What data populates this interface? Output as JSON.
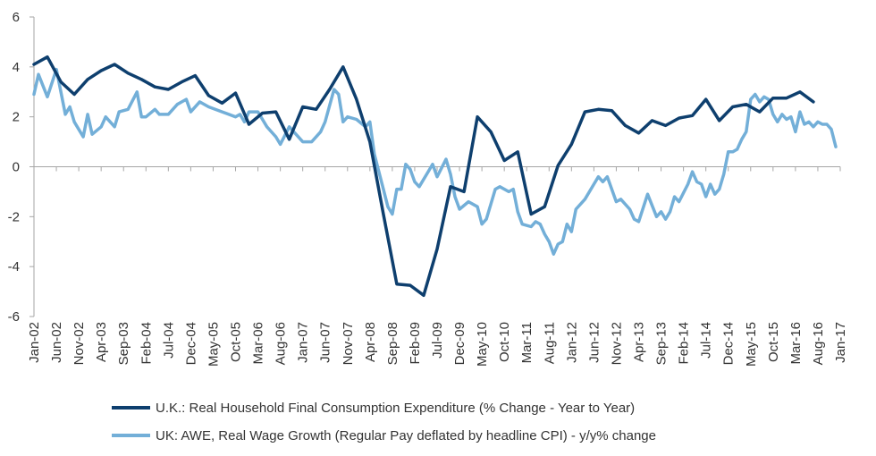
{
  "chart_data": {
    "type": "line",
    "title": "",
    "xlabel": "",
    "ylabel": "",
    "ylim": [
      -6,
      6
    ],
    "yticks": [
      -6,
      -4,
      -2,
      0,
      2,
      4,
      6
    ],
    "ytick_labels": [
      "-6",
      "-4",
      "-2",
      "0",
      "2",
      "4",
      "6"
    ],
    "xlim": [
      "Jan-02",
      "Jan-17"
    ],
    "xtick_labels": [
      "Jan-02",
      "Jun-02",
      "Nov-02",
      "Apr-03",
      "Sep-03",
      "Feb-04",
      "Jul-04",
      "Dec-04",
      "May-05",
      "Oct-05",
      "Mar-06",
      "Aug-06",
      "Jan-07",
      "Jun-07",
      "Nov-07",
      "Apr-08",
      "Sep-08",
      "Feb-09",
      "Jul-09",
      "Dec-09",
      "May-10",
      "Oct-10",
      "Mar-11",
      "Aug-11",
      "Jan-12",
      "Jun-12",
      "Nov-12",
      "Apr-13",
      "Sep-13",
      "Feb-14",
      "Jul-14",
      "Dec-14",
      "May-15",
      "Oct-15",
      "Mar-16",
      "Aug-16",
      "Jan-17"
    ],
    "grid": false,
    "legend_position": "bottom",
    "series": [
      {
        "name": "U.K.: Real Household Final Consumption Expenditure (% Change - Year to Year)",
        "color": "#0e3f6e",
        "points": [
          [
            "Jan-02",
            4.1
          ],
          [
            "Apr-02",
            4.4
          ],
          [
            "Jul-02",
            3.4
          ],
          [
            "Oct-02",
            2.9
          ],
          [
            "Jan-03",
            3.5
          ],
          [
            "Apr-03",
            3.85
          ],
          [
            "Jul-03",
            4.1
          ],
          [
            "Oct-03",
            3.75
          ],
          [
            "Jan-04",
            3.5
          ],
          [
            "Apr-04",
            3.2
          ],
          [
            "Jul-04",
            3.1
          ],
          [
            "Oct-04",
            3.4
          ],
          [
            "Jan-05",
            3.65
          ],
          [
            "Apr-05",
            2.85
          ],
          [
            "Jul-05",
            2.55
          ],
          [
            "Oct-05",
            2.95
          ],
          [
            "Jan-06",
            1.7
          ],
          [
            "Apr-06",
            2.15
          ],
          [
            "Jul-06",
            2.2
          ],
          [
            "Oct-06",
            1.1
          ],
          [
            "Jan-07",
            2.4
          ],
          [
            "Apr-07",
            2.3
          ],
          [
            "Jul-07",
            3.1
          ],
          [
            "Oct-07",
            4.0
          ],
          [
            "Jan-08",
            2.7
          ],
          [
            "Apr-08",
            1.0
          ],
          [
            "Jul-08",
            -1.9
          ],
          [
            "Oct-08",
            -4.7
          ],
          [
            "Jan-09",
            -4.75
          ],
          [
            "Apr-09",
            -5.15
          ],
          [
            "Jul-09",
            -3.3
          ],
          [
            "Oct-09",
            -0.8
          ],
          [
            "Jan-10",
            -1.0
          ],
          [
            "Apr-10",
            2.0
          ],
          [
            "Jul-10",
            1.4
          ],
          [
            "Oct-10",
            0.25
          ],
          [
            "Jan-11",
            0.6
          ],
          [
            "Apr-11",
            -1.9
          ],
          [
            "Jul-11",
            -1.6
          ],
          [
            "Oct-11",
            0.05
          ],
          [
            "Jan-12",
            0.9
          ],
          [
            "Apr-12",
            2.2
          ],
          [
            "Jul-12",
            2.3
          ],
          [
            "Oct-12",
            2.25
          ],
          [
            "Jan-13",
            1.65
          ],
          [
            "Apr-13",
            1.35
          ],
          [
            "Jul-13",
            1.85
          ],
          [
            "Oct-13",
            1.65
          ],
          [
            "Jan-14",
            1.95
          ],
          [
            "Apr-14",
            2.05
          ],
          [
            "Jul-14",
            2.7
          ],
          [
            "Oct-14",
            1.85
          ],
          [
            "Jan-15",
            2.4
          ],
          [
            "Apr-15",
            2.5
          ],
          [
            "Jul-15",
            2.2
          ],
          [
            "Oct-15",
            2.75
          ],
          [
            "Jan-16",
            2.75
          ],
          [
            "Apr-16",
            3.0
          ],
          [
            "Jul-16",
            2.6
          ]
        ]
      },
      {
        "name": "UK: AWE, Real Wage Growth (Regular Pay deflated by headline CPI) - y/y% change",
        "color": "#73afd8",
        "points": [
          [
            "Jan-02",
            2.9
          ],
          [
            "Feb-02",
            3.7
          ],
          [
            "Apr-02",
            2.8
          ],
          [
            "Jun-02",
            3.9
          ],
          [
            "Aug-02",
            2.1
          ],
          [
            "Sep-02",
            2.4
          ],
          [
            "Oct-02",
            1.8
          ],
          [
            "Dec-02",
            1.2
          ],
          [
            "Jan-03",
            2.1
          ],
          [
            "Feb-03",
            1.3
          ],
          [
            "Apr-03",
            1.6
          ],
          [
            "May-03",
            2.0
          ],
          [
            "Jul-03",
            1.6
          ],
          [
            "Aug-03",
            2.2
          ],
          [
            "Oct-03",
            2.3
          ],
          [
            "Dec-03",
            3.0
          ],
          [
            "Jan-04",
            2.0
          ],
          [
            "Feb-04",
            2.0
          ],
          [
            "Apr-04",
            2.3
          ],
          [
            "May-04",
            2.1
          ],
          [
            "Jul-04",
            2.1
          ],
          [
            "Sep-04",
            2.5
          ],
          [
            "Oct-04",
            2.6
          ],
          [
            "Nov-04",
            2.7
          ],
          [
            "Dec-04",
            2.2
          ],
          [
            "Feb-05",
            2.6
          ],
          [
            "Apr-05",
            2.4
          ],
          [
            "Jul-05",
            2.2
          ],
          [
            "Oct-05",
            2.0
          ],
          [
            "Nov-05",
            2.1
          ],
          [
            "Dec-05",
            1.8
          ],
          [
            "Jan-06",
            2.2
          ],
          [
            "Mar-06",
            2.2
          ],
          [
            "Apr-06",
            1.9
          ],
          [
            "May-06",
            1.6
          ],
          [
            "Jul-06",
            1.2
          ],
          [
            "Aug-06",
            0.9
          ],
          [
            "Oct-06",
            1.6
          ],
          [
            "Jan-07",
            1.0
          ],
          [
            "Mar-07",
            1.0
          ],
          [
            "May-07",
            1.4
          ],
          [
            "Jun-07",
            1.8
          ],
          [
            "Aug-07",
            3.1
          ],
          [
            "Sep-07",
            2.9
          ],
          [
            "Oct-07",
            1.8
          ],
          [
            "Nov-07",
            2.0
          ],
          [
            "Jan-08",
            1.9
          ],
          [
            "Mar-08",
            1.6
          ],
          [
            "Apr-08",
            1.8
          ],
          [
            "May-08",
            0.5
          ],
          [
            "Jul-08",
            -0.9
          ],
          [
            "Aug-08",
            -1.6
          ],
          [
            "Sep-08",
            -1.9
          ],
          [
            "Oct-08",
            -0.9
          ],
          [
            "Nov-08",
            -0.9
          ],
          [
            "Dec-08",
            0.1
          ],
          [
            "Jan-09",
            -0.1
          ],
          [
            "Feb-09",
            -0.6
          ],
          [
            "Mar-09",
            -0.8
          ],
          [
            "May-09",
            -0.2
          ],
          [
            "Jun-09",
            0.1
          ],
          [
            "Jul-09",
            -0.4
          ],
          [
            "Sep-09",
            0.3
          ],
          [
            "Oct-09",
            -0.3
          ],
          [
            "Nov-09",
            -1.2
          ],
          [
            "Dec-09",
            -1.7
          ],
          [
            "Feb-10",
            -1.4
          ],
          [
            "Apr-10",
            -1.6
          ],
          [
            "May-10",
            -2.3
          ],
          [
            "Jun-10",
            -2.1
          ],
          [
            "Aug-10",
            -0.9
          ],
          [
            "Sep-10",
            -0.8
          ],
          [
            "Nov-10",
            -1.0
          ],
          [
            "Dec-10",
            -0.9
          ],
          [
            "Jan-11",
            -1.8
          ],
          [
            "Feb-11",
            -2.3
          ],
          [
            "Apr-11",
            -2.4
          ],
          [
            "May-11",
            -2.2
          ],
          [
            "Jun-11",
            -2.3
          ],
          [
            "Jul-11",
            -2.7
          ],
          [
            "Aug-11",
            -3.0
          ],
          [
            "Sep-11",
            -3.5
          ],
          [
            "Oct-11",
            -3.1
          ],
          [
            "Nov-11",
            -3.0
          ],
          [
            "Dec-11",
            -2.3
          ],
          [
            "Jan-12",
            -2.6
          ],
          [
            "Feb-12",
            -1.7
          ],
          [
            "Apr-12",
            -1.3
          ],
          [
            "Jun-12",
            -0.7
          ],
          [
            "Jul-12",
            -0.4
          ],
          [
            "Aug-12",
            -0.6
          ],
          [
            "Sep-12",
            -0.4
          ],
          [
            "Nov-12",
            -1.4
          ],
          [
            "Dec-12",
            -1.3
          ],
          [
            "Feb-13",
            -1.7
          ],
          [
            "Mar-13",
            -2.1
          ],
          [
            "Apr-13",
            -2.2
          ],
          [
            "Jun-13",
            -1.1
          ],
          [
            "Aug-13",
            -2.0
          ],
          [
            "Sep-13",
            -1.8
          ],
          [
            "Oct-13",
            -2.1
          ],
          [
            "Nov-13",
            -1.8
          ],
          [
            "Dec-13",
            -1.2
          ],
          [
            "Jan-14",
            -1.4
          ],
          [
            "Mar-14",
            -0.7
          ],
          [
            "Apr-14",
            -0.2
          ],
          [
            "May-14",
            -0.6
          ],
          [
            "Jun-14",
            -0.7
          ],
          [
            "Jul-14",
            -1.2
          ],
          [
            "Aug-14",
            -0.7
          ],
          [
            "Sep-14",
            -1.1
          ],
          [
            "Oct-14",
            -0.9
          ],
          [
            "Nov-14",
            -0.3
          ],
          [
            "Dec-14",
            0.6
          ],
          [
            "Jan-15",
            0.6
          ],
          [
            "Feb-15",
            0.7
          ],
          [
            "Mar-15",
            1.1
          ],
          [
            "Apr-15",
            1.4
          ],
          [
            "May-15",
            2.7
          ],
          [
            "Jun-15",
            2.9
          ],
          [
            "Jul-15",
            2.6
          ],
          [
            "Aug-15",
            2.8
          ],
          [
            "Sep-15",
            2.7
          ],
          [
            "Oct-15",
            2.1
          ],
          [
            "Nov-15",
            1.8
          ],
          [
            "Dec-15",
            2.1
          ],
          [
            "Jan-16",
            1.9
          ],
          [
            "Feb-16",
            2.0
          ],
          [
            "Mar-16",
            1.4
          ],
          [
            "Apr-16",
            2.2
          ],
          [
            "May-16",
            1.7
          ],
          [
            "Jun-16",
            1.8
          ],
          [
            "Jul-16",
            1.6
          ],
          [
            "Aug-16",
            1.8
          ],
          [
            "Sep-16",
            1.7
          ],
          [
            "Oct-16",
            1.7
          ],
          [
            "Nov-16",
            1.5
          ],
          [
            "Dec-16",
            0.8
          ]
        ]
      }
    ]
  }
}
